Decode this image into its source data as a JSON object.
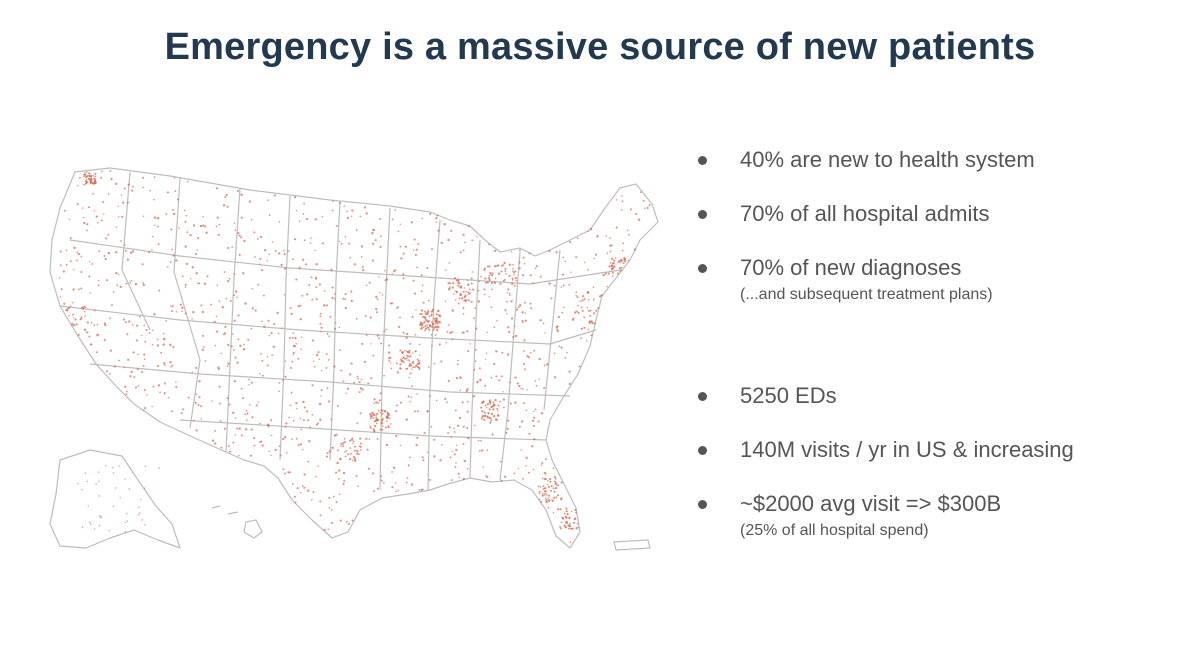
{
  "slide": {
    "title": "Emergency is a massive source of new patients"
  },
  "map": {
    "icon": "us-map-emergency-departments",
    "dot_color": "#d46a50",
    "border_color": "#bdbdbd"
  },
  "bullets": [
    {
      "text": "40% are new to health system",
      "sub": ""
    },
    {
      "text": "70% of all hospital admits",
      "sub": ""
    },
    {
      "text": "70% of new diagnoses",
      "sub": "(...and subsequent treatment plans)"
    },
    {
      "text": "5250 EDs",
      "sub": ""
    },
    {
      "text": "140M visits / yr in US & increasing",
      "sub": ""
    },
    {
      "text": "~$2000 avg visit => $300B",
      "sub": "(25% of all hospital spend)"
    }
  ]
}
